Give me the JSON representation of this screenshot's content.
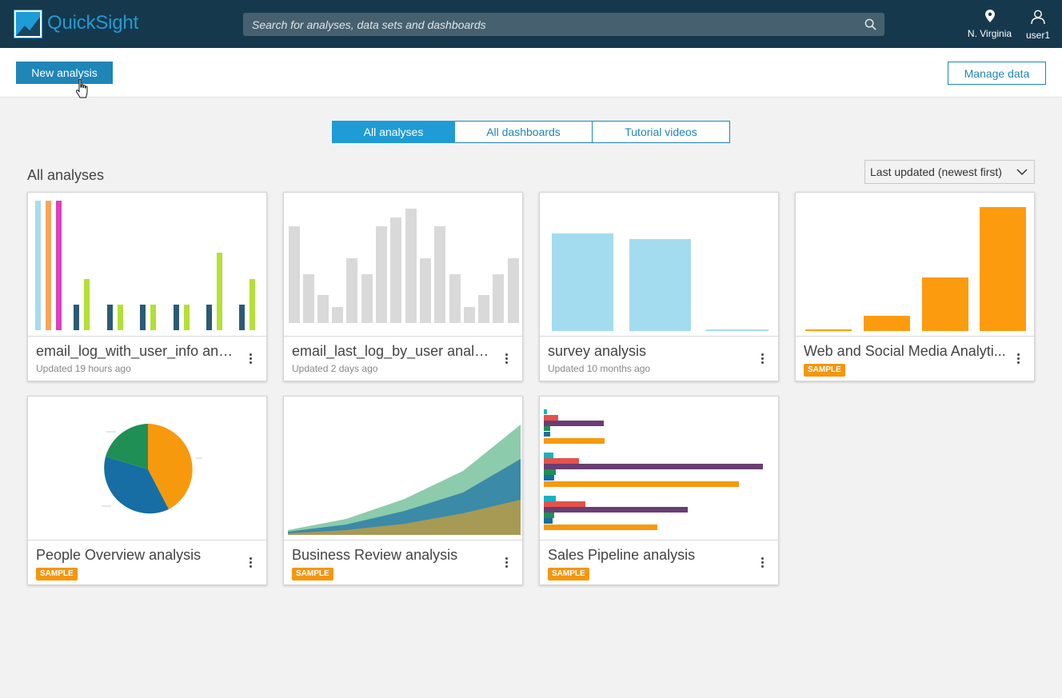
{
  "app": {
    "title": "QuickSight"
  },
  "search": {
    "placeholder": "Search for analyses, data sets and dashboards"
  },
  "header": {
    "region": "N. Virginia",
    "user": "user1"
  },
  "actions": {
    "new_analysis": "New analysis",
    "manage_data": "Manage data"
  },
  "tabs": [
    {
      "label": "All analyses",
      "active": true
    },
    {
      "label": "All dashboards",
      "active": false
    },
    {
      "label": "Tutorial videos",
      "active": false
    }
  ],
  "section": {
    "title": "All analyses",
    "sort": "Last updated (newest first)"
  },
  "cards": [
    {
      "title": "email_log_with_user_info anal...",
      "subtitle": "Updated 19 hours ago"
    },
    {
      "title": "email_last_log_by_user analysis",
      "subtitle": "Updated 2 days ago"
    },
    {
      "title": "survey analysis",
      "subtitle": "Updated 10 months ago"
    },
    {
      "title": "Web and Social Media Analyti...",
      "badge": "SAMPLE"
    },
    {
      "title": "People Overview analysis",
      "badge": "SAMPLE"
    },
    {
      "title": "Business Review analysis",
      "badge": "SAMPLE"
    },
    {
      "title": "Sales Pipeline analysis",
      "badge": "SAMPLE"
    }
  ],
  "colors": {
    "topbar": "#16384c",
    "accent": "#1f9bd6",
    "button": "#1f86b8",
    "sample_badge": "#f5960c"
  },
  "icons": [
    "quicksight-logo-icon",
    "search-icon",
    "location-pin-icon",
    "user-icon",
    "chevron-down-icon",
    "kebab-menu-icon",
    "hand-cursor-icon"
  ]
}
